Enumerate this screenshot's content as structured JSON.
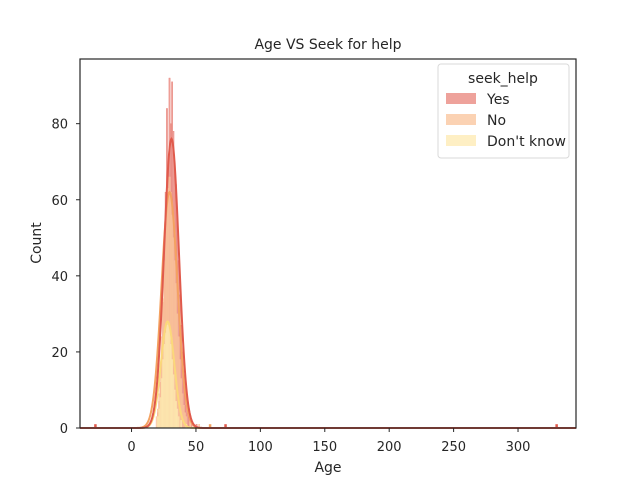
{
  "chart_data": {
    "type": "histogram",
    "title": "Age VS Seek for help",
    "xlabel": "Age",
    "ylabel": "Count",
    "xlim": [
      -40,
      345
    ],
    "ylim": [
      0,
      97
    ],
    "xticks": [
      0,
      50,
      100,
      150,
      200,
      250,
      300
    ],
    "yticks": [
      0,
      20,
      40,
      60,
      80
    ],
    "grid": false,
    "kde": true,
    "legend": {
      "title": "seek_help",
      "placement": "top-right"
    },
    "series": [
      {
        "name": "Yes",
        "color": "#e8837a",
        "kde_color": "#e05a4c",
        "bins": [
          {
            "x": 20,
            "count": 4
          },
          {
            "x": 21,
            "count": 7
          },
          {
            "x": 22,
            "count": 12
          },
          {
            "x": 23,
            "count": 20
          },
          {
            "x": 24,
            "count": 33
          },
          {
            "x": 25,
            "count": 47
          },
          {
            "x": 26,
            "count": 62
          },
          {
            "x": 27,
            "count": 84
          },
          {
            "x": 28,
            "count": 70
          },
          {
            "x": 29,
            "count": 92
          },
          {
            "x": 30,
            "count": 80
          },
          {
            "x": 31,
            "count": 91
          },
          {
            "x": 32,
            "count": 78
          },
          {
            "x": 33,
            "count": 70
          },
          {
            "x": 34,
            "count": 64
          },
          {
            "x": 35,
            "count": 55
          },
          {
            "x": 36,
            "count": 44
          },
          {
            "x": 37,
            "count": 35
          },
          {
            "x": 38,
            "count": 27
          },
          {
            "x": 39,
            "count": 20
          },
          {
            "x": 40,
            "count": 14
          },
          {
            "x": 41,
            "count": 9
          },
          {
            "x": 42,
            "count": 6
          },
          {
            "x": 43,
            "count": 4
          },
          {
            "x": 44,
            "count": 3
          },
          {
            "x": 46,
            "count": 2
          },
          {
            "x": 50,
            "count": 1
          }
        ],
        "kde": {
          "mean": 31,
          "sd": 5.8,
          "peak": 76
        }
      },
      {
        "name": "No",
        "color": "#f9c39a",
        "kde_color": "#f4a261",
        "bins": [
          {
            "x": 19,
            "count": 3
          },
          {
            "x": 20,
            "count": 5
          },
          {
            "x": 21,
            "count": 9
          },
          {
            "x": 22,
            "count": 15
          },
          {
            "x": 23,
            "count": 24
          },
          {
            "x": 24,
            "count": 34
          },
          {
            "x": 25,
            "count": 44
          },
          {
            "x": 26,
            "count": 52
          },
          {
            "x": 27,
            "count": 58
          },
          {
            "x": 28,
            "count": 63
          },
          {
            "x": 29,
            "count": 66
          },
          {
            "x": 30,
            "count": 62
          },
          {
            "x": 31,
            "count": 56
          },
          {
            "x": 32,
            "count": 50
          },
          {
            "x": 33,
            "count": 44
          },
          {
            "x": 34,
            "count": 38
          },
          {
            "x": 35,
            "count": 30
          },
          {
            "x": 36,
            "count": 24
          },
          {
            "x": 37,
            "count": 18
          },
          {
            "x": 38,
            "count": 13
          },
          {
            "x": 39,
            "count": 9
          },
          {
            "x": 40,
            "count": 6
          },
          {
            "x": 41,
            "count": 4
          },
          {
            "x": 42,
            "count": 3
          },
          {
            "x": 45,
            "count": 2
          },
          {
            "x": 52,
            "count": 1
          }
        ],
        "kde": {
          "mean": 29.5,
          "sd": 6.2,
          "peak": 62
        }
      },
      {
        "name": "Don't know",
        "color": "#fde9b0",
        "kde_color": "#fbd87a",
        "bins": [
          {
            "x": 20,
            "count": 3
          },
          {
            "x": 21,
            "count": 5
          },
          {
            "x": 22,
            "count": 8
          },
          {
            "x": 23,
            "count": 13
          },
          {
            "x": 24,
            "count": 18
          },
          {
            "x": 25,
            "count": 22
          },
          {
            "x": 26,
            "count": 25
          },
          {
            "x": 27,
            "count": 27
          },
          {
            "x": 28,
            "count": 28
          },
          {
            "x": 29,
            "count": 26
          },
          {
            "x": 30,
            "count": 22
          },
          {
            "x": 31,
            "count": 18
          },
          {
            "x": 32,
            "count": 14
          },
          {
            "x": 33,
            "count": 10
          },
          {
            "x": 34,
            "count": 7
          },
          {
            "x": 35,
            "count": 5
          },
          {
            "x": 36,
            "count": 3
          },
          {
            "x": 38,
            "count": 2
          },
          {
            "x": 42,
            "count": 1
          }
        ],
        "kde": {
          "mean": 28,
          "sd": 5.2,
          "peak": 28
        }
      }
    ],
    "outliers": [
      {
        "x": -29,
        "count": 1,
        "series": "Yes"
      },
      {
        "x": 329,
        "count": 1,
        "series": "Yes"
      },
      {
        "x": 60,
        "count": 1,
        "series": "No"
      },
      {
        "x": 72,
        "count": 1,
        "series": "Yes"
      }
    ]
  }
}
